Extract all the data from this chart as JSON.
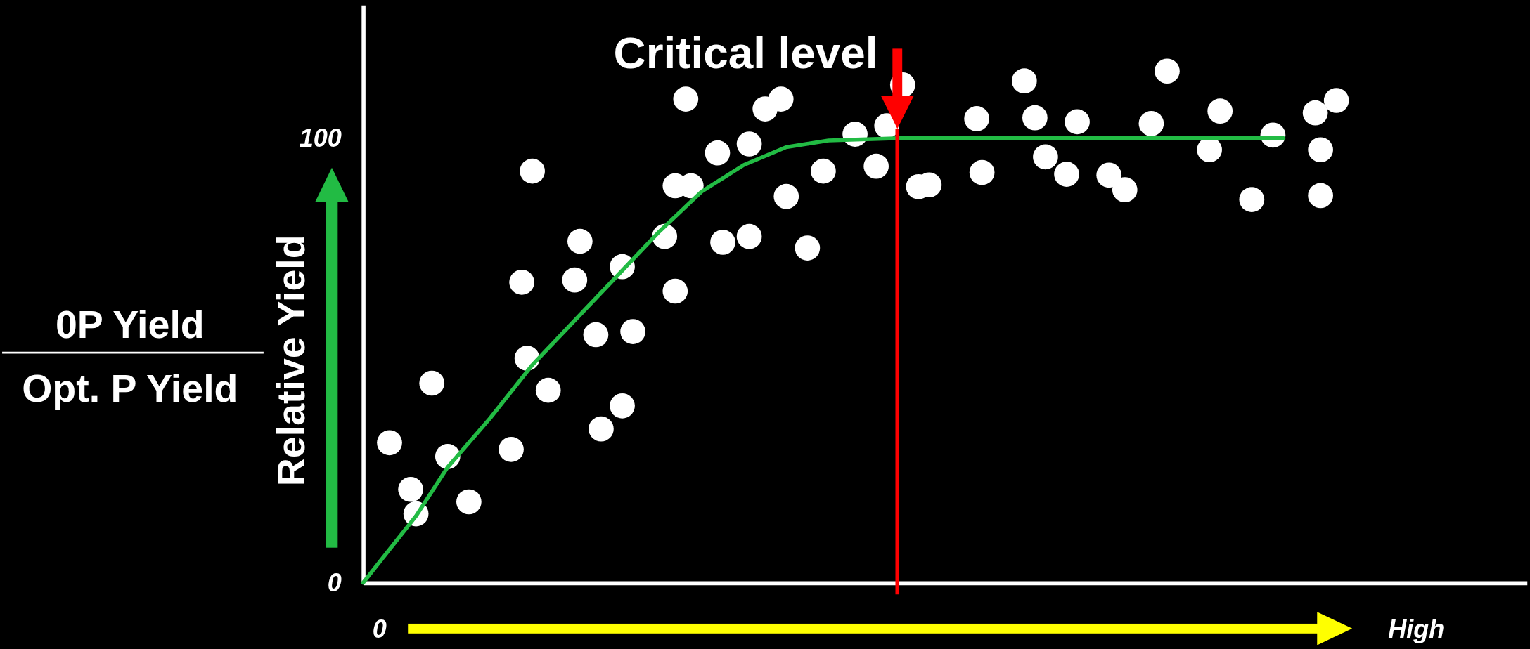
{
  "chart_data": {
    "type": "scatter",
    "ylabel": "Relative Yield",
    "ylim": [
      0,
      130
    ],
    "yticks": [
      0,
      100
    ],
    "annotations": [
      "0P Yield",
      "Opt. P Yield"
    ],
    "categories": [
      null,
      null,
      null,
      "0",
      null,
      null,
      null,
      null,
      null,
      null,
      null,
      null,
      null,
      null,
      null,
      null,
      null,
      null,
      null,
      null,
      null,
      null,
      null,
      null,
      null,
      null,
      null,
      null,
      null,
      null,
      null,
      null,
      null,
      null,
      null,
      null,
      null,
      null,
      null,
      null,
      null,
      null,
      null,
      null,
      null,
      null,
      null,
      null,
      null,
      null,
      null,
      null,
      null,
      null,
      null,
      null,
      null,
      null,
      null,
      null,
      null,
      null,
      null,
      null,
      null,
      null,
      null,
      null,
      null,
      null,
      null,
      null,
      null,
      null,
      null,
      null,
      null,
      null,
      null,
      null,
      null,
      null,
      null,
      null,
      null,
      null,
      null,
      null,
      null,
      null,
      null,
      null,
      null,
      null,
      null,
      null,
      null,
      null,
      null,
      null,
      null,
      null,
      null,
      null,
      null,
      null,
      null,
      null,
      null,
      null,
      null,
      null,
      null,
      null,
      null,
      null,
      null,
      null,
      null,
      null,
      null,
      null,
      null,
      null,
      null,
      null,
      null,
      null,
      null,
      null,
      null,
      null,
      null,
      null,
      null,
      null,
      null,
      null,
      null,
      null,
      null,
      null,
      null,
      null,
      null,
      null,
      null,
      null,
      null,
      null,
      null,
      null,
      null,
      null,
      null,
      null,
      null,
      null,
      null,
      null,
      null,
      null,
      null,
      null,
      null,
      null,
      null,
      null,
      null,
      null,
      null,
      null,
      null,
      null,
      null,
      null,
      null,
      null,
      null,
      null,
      null,
      null,
      null,
      null,
      null,
      null,
      null,
      null,
      null,
      null,
      null,
      null,
      null,
      null,
      null,
      null,
      null,
      null,
      null,
      "High",
      null,
      null,
      null,
      null,
      null,
      null,
      null,
      null,
      null,
      null,
      null,
      null,
      null,
      null,
      null,
      null,
      null,
      null,
      null,
      null,
      null
    ],
    "ref_lines": [
      {
        "axis": "x",
        "label": "Critical level",
        "color": "#ff0000"
      }
    ],
    "series": [
      {
        "color": "#ffffff",
        "marker": "circle",
        "values": [
          null,
          null,
          null,
          null,
          null,
          31.5,
          null,
          null,
          null,
          21.0,
          15.5,
          null,
          null,
          44.9,
          null,
          null,
          28.4,
          null,
          null,
          null,
          18.2,
          null,
          null,
          null,
          null,
          null,
          null,
          null,
          30.0,
          null,
          67.6,
          50.5,
          92.6,
          null,
          null,
          43.3,
          null,
          null,
          null,
          null,
          68.1,
          76.8,
          null,
          null,
          55.8,
          34.6,
          null,
          null,
          null,
          71.1,
          null,
          56.5,
          null,
          null,
          null,
          null,
          null,
          77.9,
          null,
          89.3,
          null,
          108.8,
          89.3,
          null,
          null,
          null,
          null,
          96.7,
          76.6,
          null,
          null,
          null,
          null,
          77.9,
          null,
          null,
          106.6,
          null,
          null,
          108.8,
          86.9,
          null,
          null,
          null,
          75.3,
          null,
          null,
          92.6,
          null,
          null,
          null,
          null,
          null,
          100.9,
          null,
          null,
          null,
          93.7,
          null,
          102.8,
          null,
          null,
          112.0,
          null,
          null,
          89.1,
          null,
          89.5,
          null,
          null,
          null,
          null,
          null,
          null,
          null,
          null,
          104.4,
          92.3,
          null,
          null,
          null,
          null,
          null,
          null,
          null,
          112.9,
          null,
          104.6,
          null,
          95.8,
          null,
          null,
          null,
          91.9,
          null,
          103.7,
          null,
          null,
          null,
          null,
          null,
          91.7,
          null,
          null,
          88.4,
          null,
          null,
          null,
          null,
          103.3,
          null,
          null,
          115.1,
          null,
          null,
          null,
          null,
          null,
          null,
          null,
          97.4,
          null,
          106.1,
          null,
          null,
          null,
          null,
          null,
          86.2,
          null,
          null,
          null,
          100.7,
          null,
          null,
          null,
          null,
          null,
          null,
          null,
          105.7,
          87.1,
          null,
          null,
          108.5,
          null,
          null,
          null,
          null,
          null,
          null,
          null,
          null,
          null,
          null,
          null,
          null,
          null,
          null,
          null,
          null,
          null,
          null,
          null,
          null,
          null,
          null,
          null,
          null,
          null,
          null,
          null,
          null,
          null,
          null,
          null,
          null,
          null,
          null,
          null,
          null
        ]
      },
      {
        "color": "#ffffff",
        "marker": "circle",
        "values": [
          null,
          null,
          null,
          null,
          null,
          null,
          null,
          null,
          null,
          null,
          null,
          null,
          null,
          null,
          null,
          null,
          null,
          null,
          null,
          null,
          null,
          null,
          null,
          null,
          null,
          null,
          null,
          null,
          null,
          null,
          null,
          null,
          null,
          null,
          null,
          null,
          null,
          null,
          null,
          null,
          null,
          null,
          null,
          null,
          null,
          null,
          null,
          null,
          null,
          39.8,
          null,
          null,
          null,
          null,
          null,
          null,
          null,
          null,
          null,
          65.6,
          null,
          null,
          null,
          null,
          null,
          null,
          null,
          null,
          null,
          null,
          null,
          null,
          null,
          98.7,
          null,
          null,
          null,
          null,
          null,
          null,
          null,
          null,
          null,
          null,
          null,
          null,
          null,
          null,
          null,
          null,
          null,
          null,
          null,
          null,
          null,
          null,
          null,
          null,
          null,
          null,
          null,
          null,
          null,
          null,
          null,
          null,
          null,
          null,
          null,
          null,
          null,
          null,
          null,
          null,
          null,
          null,
          null,
          null,
          null,
          null,
          null,
          null,
          null,
          null,
          null,
          null,
          null,
          null,
          null,
          null,
          null,
          null,
          null,
          null,
          null,
          null,
          null,
          null,
          null,
          null,
          null,
          null,
          null,
          null,
          null,
          null,
          null,
          null,
          null,
          null,
          null,
          null,
          null,
          null,
          null,
          null,
          null,
          null,
          null,
          null,
          null,
          null,
          null,
          null,
          null,
          null,
          null,
          null,
          null,
          null,
          null,
          null,
          null,
          null,
          null,
          null,
          null,
          null,
          null,
          null,
          null,
          97.4,
          null,
          null,
          null,
          null,
          null,
          null,
          null,
          null,
          null,
          null,
          null,
          null,
          null,
          null,
          null,
          null,
          null,
          null,
          null,
          null,
          null,
          null,
          null,
          null,
          null,
          null,
          null,
          null,
          null,
          null,
          null,
          null,
          null,
          null,
          null,
          null,
          null,
          null,
          null
        ]
      },
      {
        "type": "line",
        "color": "#22bb44",
        "marker": "none",
        "values": [
          0,
          null,
          null,
          null,
          null,
          null,
          null,
          null,
          null,
          null,
          15,
          null,
          null,
          null,
          null,
          null,
          26,
          null,
          null,
          null,
          null,
          null,
          null,
          null,
          37,
          null,
          null,
          null,
          null,
          null,
          null,
          null,
          49,
          null,
          null,
          null,
          null,
          null,
          null,
          null,
          59,
          null,
          null,
          null,
          null,
          null,
          null,
          null,
          69,
          null,
          null,
          null,
          null,
          null,
          null,
          null,
          79,
          null,
          null,
          null,
          null,
          null,
          null,
          null,
          88,
          null,
          null,
          null,
          null,
          null,
          null,
          null,
          94,
          null,
          null,
          null,
          null,
          null,
          null,
          null,
          98,
          null,
          null,
          null,
          null,
          null,
          null,
          null,
          99.5,
          null,
          null,
          null,
          null,
          null,
          null,
          null,
          null,
          null,
          null,
          null,
          null,
          100,
          null,
          null,
          null,
          null,
          null,
          null,
          null,
          null,
          null,
          null,
          null,
          null,
          null,
          null,
          null,
          null,
          null,
          null,
          null,
          null,
          null,
          null,
          null,
          null,
          null,
          null,
          null,
          null,
          null,
          null,
          null,
          null,
          null,
          null,
          null,
          null,
          null,
          null,
          null,
          null,
          null,
          null,
          null,
          null,
          null,
          null,
          null,
          null,
          null,
          null,
          null,
          null,
          null,
          null,
          null,
          null,
          null,
          null,
          null,
          null,
          null,
          null,
          null,
          null,
          null,
          null,
          null,
          null,
          null,
          null,
          null,
          null,
          100,
          null,
          null,
          null,
          null,
          null,
          null,
          null,
          null,
          null,
          null,
          null,
          null,
          null,
          null,
          null,
          null,
          null,
          null,
          null,
          null,
          null,
          null,
          null,
          null,
          null,
          null,
          null,
          null,
          null,
          null,
          null,
          null,
          null,
          null,
          null,
          null,
          null,
          null,
          null,
          null,
          null,
          null,
          null,
          null,
          null,
          null
        ]
      }
    ]
  }
}
